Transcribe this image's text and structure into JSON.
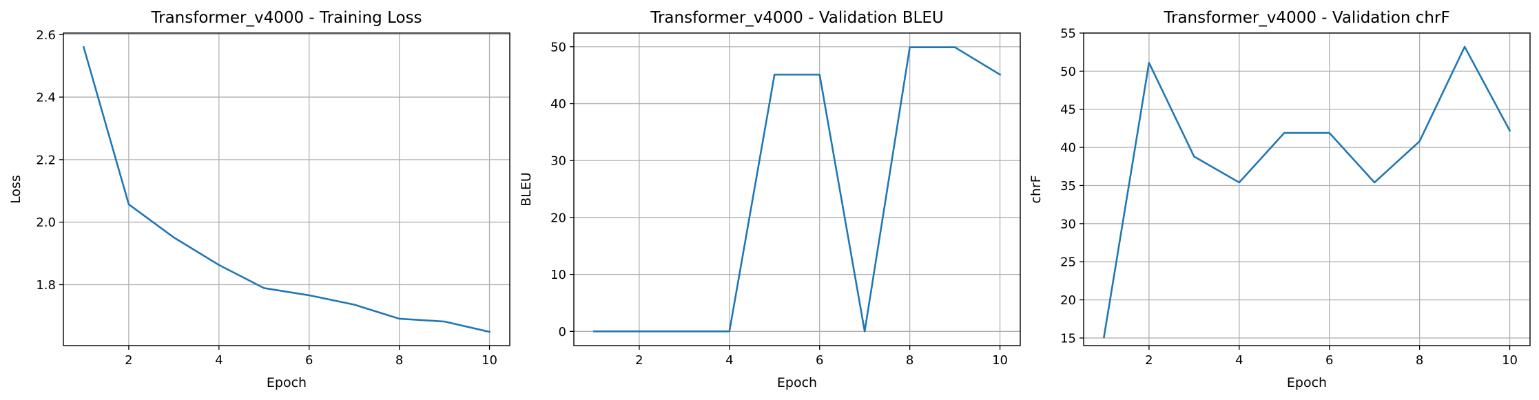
{
  "chart_data": [
    {
      "type": "line",
      "title": "Transformer_v4000 - Training Loss",
      "xlabel": "Epoch",
      "ylabel": "Loss",
      "x": [
        1,
        2,
        3,
        4,
        5,
        6,
        7,
        8,
        9,
        10
      ],
      "series": [
        {
          "values": [
            2.56,
            2.057,
            1.951,
            1.863,
            1.789,
            1.766,
            1.736,
            1.691,
            1.682,
            1.649
          ]
        }
      ],
      "xlim": [
        0.55,
        10.45
      ],
      "ylim": [
        1.605,
        2.605
      ],
      "xticks": [
        2,
        4,
        6,
        8,
        10
      ],
      "yticks": [
        1.8,
        2.0,
        2.2,
        2.4,
        2.6
      ],
      "ytick_labels": [
        "1.8",
        "2.0",
        "2.2",
        "2.4",
        "2.6"
      ],
      "grid": true,
      "color": "#1f77b4"
    },
    {
      "type": "line",
      "title": "Transformer_v4000 - Validation BLEU",
      "xlabel": "Epoch",
      "ylabel": "BLEU",
      "x": [
        1,
        2,
        3,
        4,
        5,
        6,
        7,
        8,
        9,
        10
      ],
      "series": [
        {
          "values": [
            0,
            0,
            0,
            0,
            45.1,
            45.1,
            0,
            49.9,
            49.9,
            45.1
          ]
        }
      ],
      "xlim": [
        0.55,
        10.45
      ],
      "ylim": [
        -2.5,
        52.4
      ],
      "xticks": [
        2,
        4,
        6,
        8,
        10
      ],
      "yticks": [
        0,
        10,
        20,
        30,
        40,
        50
      ],
      "ytick_labels": [
        "0",
        "10",
        "20",
        "30",
        "40",
        "50"
      ],
      "grid": true,
      "color": "#1f77b4"
    },
    {
      "type": "line",
      "title": "Transformer_v4000 - Validation chrF",
      "xlabel": "Epoch",
      "ylabel": "chrF",
      "x": [
        1,
        2,
        3,
        4,
        5,
        6,
        7,
        8,
        9,
        10
      ],
      "series": [
        {
          "values": [
            15.1,
            51.1,
            38.8,
            35.4,
            41.9,
            41.9,
            35.4,
            40.8,
            53.2,
            42.2
          ]
        }
      ],
      "xlim": [
        0.55,
        10.45
      ],
      "ylim": [
        14.0,
        55.0
      ],
      "xticks": [
        2,
        4,
        6,
        8,
        10
      ],
      "yticks": [
        15,
        20,
        25,
        30,
        35,
        40,
        45,
        50,
        55
      ],
      "ytick_labels": [
        "15",
        "20",
        "25",
        "30",
        "35",
        "40",
        "45",
        "50",
        "55"
      ],
      "grid": true,
      "color": "#1f77b4"
    }
  ]
}
